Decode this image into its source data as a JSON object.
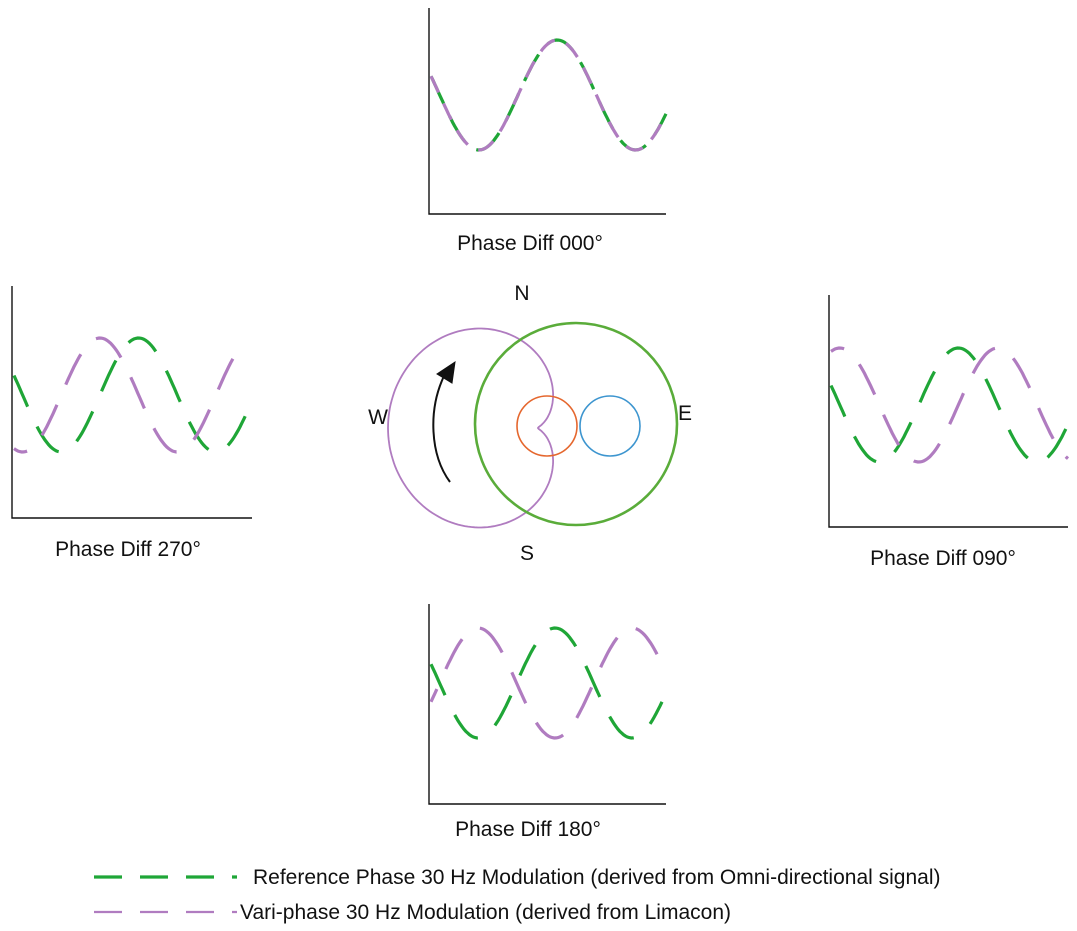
{
  "colors": {
    "reference": "#1fa637",
    "variable": "#b07cc0",
    "limacon_outer": "#b07cc0",
    "omni_circle": "#5aac3a",
    "small_circle_left": "#e5672e",
    "small_circle_right": "#3d95cf",
    "axes": "#111111",
    "arrow": "#111111"
  },
  "panels": [
    {
      "id": "000",
      "label": "Phase Diff 000°",
      "phase_diff_deg": 0
    },
    {
      "id": "270",
      "label": "Phase Diff 270°",
      "phase_diff_deg": 270
    },
    {
      "id": "090",
      "label": "Phase Diff 090°",
      "phase_diff_deg": 90
    },
    {
      "id": "180",
      "label": "Phase Diff 180°",
      "phase_diff_deg": 180
    }
  ],
  "compass": {
    "north": "N",
    "south": "S",
    "east": "E",
    "west": "W"
  },
  "legend": [
    {
      "text": "Reference Phase 30 Hz Modulation (derived from Omni-directional signal)",
      "color_key": "reference"
    },
    {
      "text": "Vari-phase 30 Hz Modulation (derived from Limacon)",
      "color_key": "variable"
    }
  ]
}
